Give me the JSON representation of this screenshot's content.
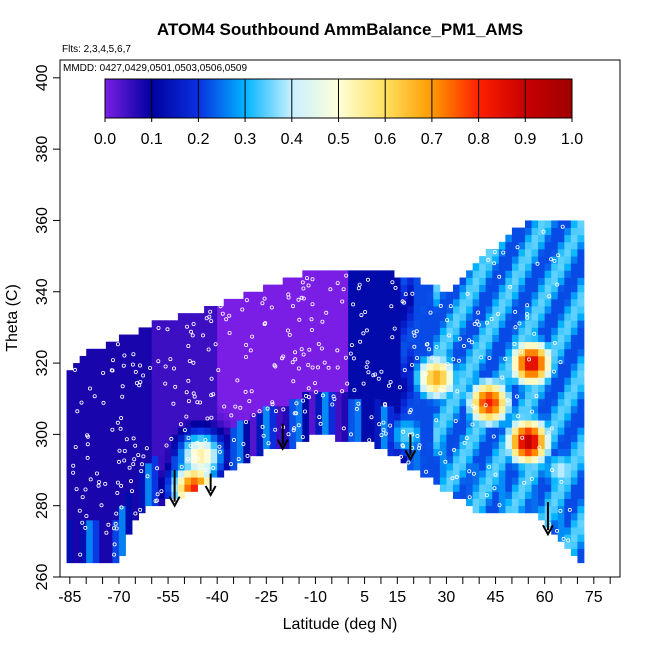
{
  "chart_data": {
    "type": "heatmap",
    "title": "ATOM4 Southbound AmmBalance_PM1_AMS",
    "flights_note": "Flts: 2,3,4,5,6,7",
    "dates_note": "MMDD: 0427,0429,0501,0503,0506,0509",
    "xlabel": "Latitude (deg N)",
    "ylabel": "Theta (C)",
    "xlim": [
      -88,
      83
    ],
    "ylim": [
      260,
      405
    ],
    "x_ticks": [
      -85,
      -70,
      -55,
      -40,
      -25,
      -10,
      5,
      15,
      30,
      45,
      60,
      75
    ],
    "y_ticks": [
      260,
      280,
      300,
      320,
      340,
      360,
      380,
      400
    ],
    "colorbar": {
      "range": [
        0.0,
        1.0
      ],
      "ticks": [
        "0.0",
        "0.1",
        "0.2",
        "0.3",
        "0.4",
        "0.5",
        "0.6",
        "0.7",
        "0.8",
        "0.9",
        "1.0"
      ],
      "colors": [
        "#7a1ee6",
        "#00009e",
        "#0a30e0",
        "#00b4ff",
        "#c8f0ff",
        "#ffffd8",
        "#ffe060",
        "#ff9a00",
        "#ff2000",
        "#c80000",
        "#a00000"
      ]
    },
    "surface_profile": [
      [
        -73,
        265
      ],
      [
        -70,
        265
      ],
      [
        -65,
        277
      ],
      [
        -60,
        281
      ],
      [
        -55,
        282
      ],
      [
        -48,
        285
      ],
      [
        -40,
        289
      ],
      [
        -35,
        291
      ],
      [
        -25,
        296
      ],
      [
        -18,
        297
      ],
      [
        -10,
        301
      ],
      [
        0,
        299
      ],
      [
        8,
        298
      ],
      [
        15,
        294
      ],
      [
        25,
        288
      ],
      [
        35,
        282
      ],
      [
        42,
        278
      ],
      [
        50,
        278
      ],
      [
        58,
        278
      ],
      [
        65,
        271
      ],
      [
        71,
        265
      ]
    ],
    "top_profile": [
      [
        -85,
        318
      ],
      [
        -80,
        322
      ],
      [
        -70,
        326
      ],
      [
        -60,
        330
      ],
      [
        -45,
        334
      ],
      [
        -30,
        339
      ],
      [
        -15,
        344
      ],
      [
        -5,
        345
      ],
      [
        10,
        345
      ],
      [
        20,
        343
      ],
      [
        30,
        339
      ],
      [
        40,
        348
      ],
      [
        55,
        359
      ],
      [
        70,
        360
      ]
    ],
    "hotspots": [
      {
        "lat": 55,
        "theta": 298,
        "value": 0.93
      },
      {
        "lat": 56,
        "theta": 320,
        "value": 0.88
      },
      {
        "lat": 43,
        "theta": 309,
        "value": 0.82
      },
      {
        "lat": 27,
        "theta": 316,
        "value": 0.68
      },
      {
        "lat": -45,
        "theta": 294,
        "value": 0.55
      },
      {
        "lat": -47,
        "theta": 285,
        "value": 0.8
      },
      {
        "lat": 18,
        "theta": 300,
        "value": 0.35
      },
      {
        "lat": 65,
        "theta": 290,
        "value": 0.4
      }
    ],
    "arrows": [
      {
        "lat": -53,
        "theta_top": 290,
        "theta_tip": 280
      },
      {
        "lat": -42,
        "theta_top": 289,
        "theta_tip": 283
      },
      {
        "lat": -20,
        "theta_top": 303,
        "theta_tip": 296
      },
      {
        "lat": 19,
        "theta_top": 300,
        "theta_tip": 293
      },
      {
        "lat": 61,
        "theta_top": 281,
        "theta_tip": 272
      }
    ]
  }
}
